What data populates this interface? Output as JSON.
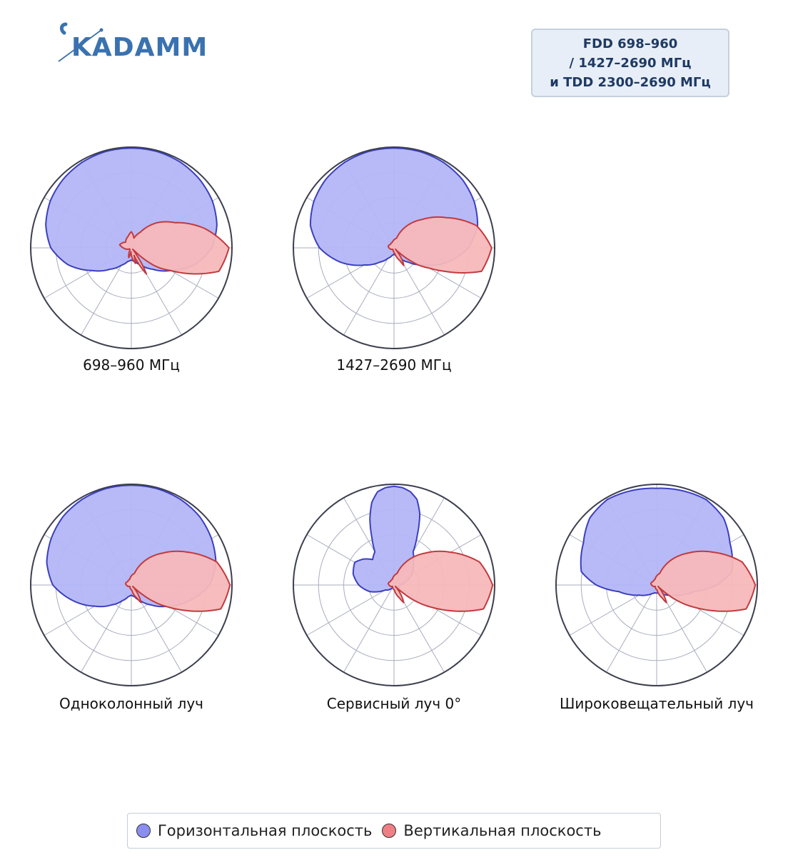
{
  "logo": {
    "text": "KADAMM"
  },
  "info_box": {
    "lines": [
      "FDD 698–960",
      "/ 1427–2690 МГц",
      "и TDD 2300–2690 МГц"
    ]
  },
  "colors": {
    "horizontal_fill": "#b3b6f7",
    "horizontal_stroke": "#3b3fbf",
    "vertical_fill": "#f6b8bb",
    "vertical_stroke": "#c23a3e",
    "grid": "#a9adbd",
    "outer_ring": "#3c3f4e"
  },
  "legend": {
    "horizontal_label": "Горизонтальная плоскость",
    "vertical_label": "Вертикальная плоскость",
    "horizontal_color": "#8a8ef0",
    "vertical_color": "#ef7f84"
  },
  "chart_data": [
    {
      "type": "polar",
      "title": "698–960 МГц",
      "grid_rings": 4,
      "radial_spokes_deg": 30,
      "series": [
        {
          "name": "Горизонтальная плоскость",
          "angles_deg": [
            0,
            15,
            30,
            45,
            60,
            75,
            90,
            105,
            120,
            135,
            150,
            165,
            180,
            195,
            210,
            225,
            240,
            255,
            270,
            285,
            300,
            315,
            330,
            345
          ],
          "r": [
            0.99,
            0.99,
            0.98,
            0.96,
            0.93,
            0.88,
            0.8,
            0.65,
            0.45,
            0.3,
            0.2,
            0.14,
            0.12,
            0.14,
            0.2,
            0.3,
            0.45,
            0.65,
            0.8,
            0.88,
            0.93,
            0.96,
            0.98,
            0.99
          ]
        },
        {
          "name": "Вертикальная плоскость",
          "angles_deg": [
            0,
            3,
            6,
            9,
            12,
            15,
            20,
            25,
            30,
            40,
            50,
            60,
            75,
            90,
            105,
            120,
            135,
            150,
            165,
            180,
            195,
            210,
            225,
            240,
            255,
            270,
            285,
            300,
            315,
            330,
            340,
            345,
            350,
            353,
            356,
            358
          ],
          "r": [
            0.02,
            0.03,
            0.05,
            0.1,
            0.2,
            0.3,
            0.18,
            0.08,
            0.16,
            0.1,
            0.04,
            0.1,
            0.03,
            0.02,
            0.02,
            0.05,
            0.08,
            0.12,
            0.1,
            0.08,
            0.1,
            0.12,
            0.16,
            0.1,
            0.18,
            0.35,
            0.5,
            0.75,
            0.97,
            0.9,
            0.6,
            0.45,
            0.35,
            0.28,
            0.18,
            0.1
          ]
        }
      ]
    },
    {
      "type": "polar",
      "title": "1427–2690 МГц",
      "grid_rings": 4,
      "radial_spokes_deg": 30,
      "series": [
        {
          "name": "Горизонтальная плоскость",
          "angles_deg": [
            0,
            15,
            30,
            45,
            60,
            75,
            90,
            105,
            120,
            135,
            150,
            165,
            180,
            195,
            210,
            225,
            240,
            255,
            270,
            285,
            300,
            315,
            330,
            345
          ],
          "r": [
            0.99,
            0.99,
            0.98,
            0.96,
            0.92,
            0.86,
            0.74,
            0.55,
            0.34,
            0.2,
            0.12,
            0.08,
            0.06,
            0.08,
            0.12,
            0.2,
            0.34,
            0.55,
            0.74,
            0.86,
            0.92,
            0.96,
            0.98,
            0.99
          ]
        },
        {
          "name": "Вертикальная плоскость",
          "angles_deg": [
            0,
            4,
            8,
            12,
            16,
            20,
            28,
            36,
            48,
            60,
            75,
            90,
            120,
            150,
            180,
            210,
            240,
            270,
            285,
            300,
            315,
            330,
            340,
            345,
            350,
            354,
            357
          ],
          "r": [
            0.02,
            0.05,
            0.1,
            0.16,
            0.2,
            0.14,
            0.1,
            0.06,
            0.04,
            0.03,
            0.02,
            0.02,
            0.04,
            0.06,
            0.05,
            0.06,
            0.1,
            0.4,
            0.6,
            0.85,
            0.97,
            0.9,
            0.55,
            0.4,
            0.3,
            0.18,
            0.1
          ]
        }
      ]
    },
    {
      "type": "polar",
      "title": "Одноколонный луч",
      "grid_rings": 4,
      "radial_spokes_deg": 30,
      "series": [
        {
          "name": "Горизонтальная плоскость",
          "angles_deg": [
            0,
            15,
            30,
            45,
            60,
            75,
            90,
            105,
            120,
            135,
            150,
            165,
            180,
            195,
            210,
            225,
            240,
            255,
            270,
            285,
            300,
            315,
            330,
            345
          ],
          "r": [
            0.99,
            0.99,
            0.98,
            0.96,
            0.92,
            0.87,
            0.78,
            0.6,
            0.42,
            0.28,
            0.18,
            0.12,
            0.1,
            0.12,
            0.18,
            0.28,
            0.42,
            0.6,
            0.78,
            0.87,
            0.92,
            0.96,
            0.98,
            0.99
          ]
        },
        {
          "name": "Вертикальная плоскость",
          "angles_deg": [
            0,
            4,
            8,
            12,
            16,
            22,
            30,
            40,
            55,
            70,
            90,
            120,
            150,
            180,
            210,
            240,
            270,
            285,
            300,
            315,
            330,
            340,
            345,
            350,
            354,
            357
          ],
          "r": [
            0.02,
            0.05,
            0.1,
            0.15,
            0.2,
            0.14,
            0.1,
            0.05,
            0.04,
            0.03,
            0.02,
            0.04,
            0.06,
            0.05,
            0.06,
            0.12,
            0.45,
            0.65,
            0.88,
            0.98,
            0.92,
            0.6,
            0.45,
            0.32,
            0.2,
            0.1
          ]
        }
      ]
    },
    {
      "type": "polar",
      "title": "Сервисный луч 0°",
      "grid_rings": 4,
      "radial_spokes_deg": 30,
      "series": [
        {
          "name": "Горизонтальная плоскость",
          "angles_deg": [
            0,
            5,
            10,
            15,
            20,
            25,
            30,
            40,
            50,
            60,
            75,
            90,
            120,
            150,
            180,
            210,
            240,
            255,
            270,
            285,
            300,
            310,
            320,
            330,
            335,
            340,
            345,
            350,
            355
          ],
          "r": [
            0.98,
            0.97,
            0.94,
            0.88,
            0.75,
            0.55,
            0.38,
            0.3,
            0.25,
            0.2,
            0.12,
            0.06,
            0.04,
            0.03,
            0.03,
            0.03,
            0.1,
            0.25,
            0.35,
            0.42,
            0.45,
            0.4,
            0.33,
            0.38,
            0.52,
            0.7,
            0.85,
            0.94,
            0.97
          ]
        },
        {
          "name": "Вертикальная плоскость",
          "angles_deg": [
            0,
            4,
            8,
            12,
            16,
            22,
            30,
            40,
            55,
            70,
            90,
            120,
            150,
            180,
            210,
            240,
            270,
            285,
            300,
            315,
            330,
            340,
            345,
            350,
            354,
            357
          ],
          "r": [
            0.02,
            0.05,
            0.1,
            0.15,
            0.2,
            0.14,
            0.1,
            0.05,
            0.04,
            0.03,
            0.02,
            0.04,
            0.06,
            0.05,
            0.06,
            0.12,
            0.45,
            0.65,
            0.88,
            0.98,
            0.92,
            0.6,
            0.45,
            0.32,
            0.2,
            0.1
          ]
        }
      ]
    },
    {
      "type": "polar",
      "title": "Широковещательный луч",
      "grid_rings": 4,
      "radial_spokes_deg": 30,
      "series": [
        {
          "name": "Горизонтальная плоскость",
          "angles_deg": [
            0,
            15,
            30,
            45,
            60,
            70,
            80,
            90,
            100,
            110,
            120,
            135,
            150,
            165,
            180,
            195,
            210,
            225,
            240,
            250,
            260,
            270,
            280,
            290,
            300,
            315,
            330,
            345
          ],
          "r": [
            0.96,
            0.97,
            0.98,
            0.94,
            0.84,
            0.8,
            0.76,
            0.6,
            0.38,
            0.28,
            0.2,
            0.14,
            0.1,
            0.08,
            0.08,
            0.08,
            0.1,
            0.14,
            0.2,
            0.28,
            0.38,
            0.6,
            0.76,
            0.8,
            0.84,
            0.94,
            0.98,
            0.97
          ]
        },
        {
          "name": "Вертикальная плоскость",
          "angles_deg": [
            0,
            4,
            8,
            12,
            16,
            22,
            30,
            40,
            55,
            70,
            90,
            120,
            150,
            180,
            210,
            240,
            270,
            285,
            300,
            315,
            330,
            340,
            345,
            350,
            354,
            357
          ],
          "r": [
            0.02,
            0.05,
            0.1,
            0.15,
            0.2,
            0.14,
            0.1,
            0.05,
            0.04,
            0.03,
            0.02,
            0.04,
            0.06,
            0.05,
            0.06,
            0.12,
            0.45,
            0.65,
            0.88,
            0.98,
            0.92,
            0.6,
            0.45,
            0.32,
            0.2,
            0.1
          ]
        }
      ]
    }
  ]
}
